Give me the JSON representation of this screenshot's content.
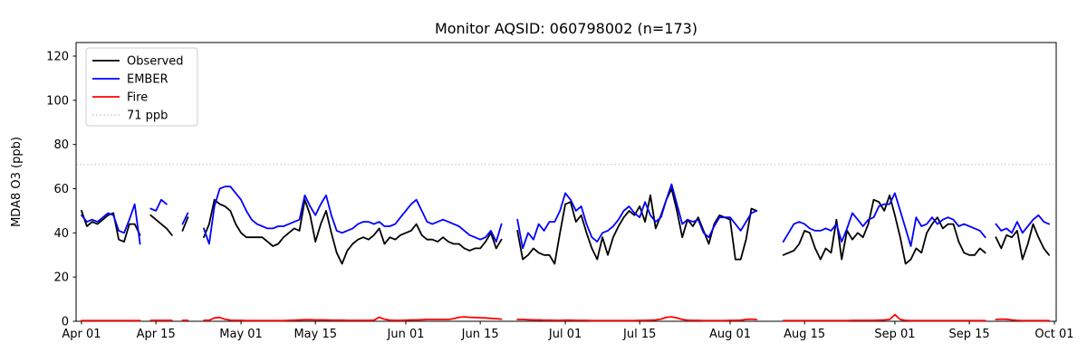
{
  "chart_data": {
    "type": "line",
    "title": "Monitor AQSID: 060798002 (n=173)",
    "ylabel": "MDA8 O3 (ppb)",
    "yticks": [
      0,
      20,
      40,
      60,
      80,
      100,
      120
    ],
    "ylim": [
      0,
      126
    ],
    "grid": false,
    "x_frequency": "daily",
    "x_start_label": "Apr 01",
    "x_end_label": "Oct 01",
    "x_tick_labels": [
      "Apr 01",
      "Apr 15",
      "May 01",
      "May 15",
      "Jun 01",
      "Jun 15",
      "Jul 01",
      "Jul 15",
      "Aug 01",
      "Aug 15",
      "Sep 01",
      "Sep 15",
      "Oct 01"
    ],
    "x_tick_days": [
      0,
      14,
      30,
      44,
      61,
      75,
      91,
      105,
      122,
      136,
      153,
      167,
      183
    ],
    "threshold_line": {
      "label": "71 ppb",
      "value": 71,
      "color": "#cfcfcf",
      "dash": "dotted"
    },
    "legend": {
      "position": "upper left",
      "entries": [
        "Observed",
        "EMBER",
        "Fire",
        "71 ppb"
      ]
    },
    "series": [
      {
        "name": "Observed",
        "color": "#000000",
        "values": [
          50,
          43,
          45,
          44,
          46,
          48,
          49,
          37,
          36,
          44,
          44,
          39,
          null,
          48,
          46,
          44,
          42,
          39,
          null,
          41,
          47,
          null,
          null,
          38,
          44,
          55,
          53,
          52,
          50,
          44,
          40,
          38,
          38,
          38,
          38,
          36,
          34,
          35,
          38,
          40,
          42,
          41,
          55,
          48,
          36,
          44,
          50,
          40,
          31,
          26,
          32,
          35,
          37,
          38,
          37,
          39,
          42,
          35,
          38,
          37,
          39,
          40,
          41,
          44,
          39,
          37,
          37,
          36,
          38,
          36,
          35,
          35,
          33,
          32,
          33,
          33,
          36,
          40,
          33,
          37,
          null,
          null,
          41,
          28,
          30,
          33,
          31,
          30,
          30,
          26,
          40,
          53,
          54,
          45,
          48,
          40,
          33,
          28,
          38,
          30,
          38,
          43,
          47,
          50,
          48,
          52,
          45,
          57,
          42,
          48,
          55,
          60,
          50,
          38,
          46,
          43,
          47,
          41,
          35,
          44,
          48,
          47,
          46,
          28,
          28,
          37,
          51,
          50,
          null,
          null,
          null,
          null,
          30,
          31,
          32,
          35,
          41,
          40,
          33,
          28,
          33,
          31,
          46,
          28,
          41,
          37,
          40,
          38,
          44,
          55,
          54,
          50,
          57,
          48,
          38,
          26,
          28,
          33,
          31,
          40,
          44,
          47,
          42,
          44,
          44,
          36,
          31,
          30,
          30,
          33,
          31,
          null,
          38,
          33,
          39,
          38,
          41,
          28,
          35,
          44,
          38,
          33,
          30
        ]
      },
      {
        "name": "EMBER",
        "color": "#0000ff",
        "values": [
          48,
          45,
          46,
          45,
          47,
          49,
          48,
          41,
          40,
          46,
          53,
          35,
          null,
          51,
          50,
          55,
          53,
          null,
          null,
          44,
          49,
          null,
          null,
          42,
          35,
          52,
          60,
          61,
          61,
          58,
          55,
          50,
          46,
          44,
          43,
          42,
          42,
          43,
          43,
          44,
          45,
          46,
          57,
          52,
          48,
          53,
          57,
          48,
          41,
          40,
          41,
          42,
          44,
          45,
          45,
          44,
          45,
          43,
          43,
          44,
          47,
          50,
          53,
          55,
          50,
          45,
          44,
          45,
          46,
          45,
          44,
          43,
          41,
          39,
          38,
          37,
          38,
          41,
          36,
          44,
          null,
          null,
          46,
          33,
          40,
          37,
          44,
          41,
          45,
          45,
          50,
          58,
          55,
          50,
          52,
          44,
          38,
          36,
          40,
          41,
          43,
          46,
          50,
          52,
          49,
          47,
          54,
          48,
          45,
          47,
          55,
          62,
          53,
          44,
          46,
          45,
          46,
          40,
          38,
          43,
          47,
          47,
          47,
          44,
          41,
          45,
          49,
          50,
          null,
          null,
          null,
          null,
          36,
          40,
          44,
          45,
          44,
          42,
          41,
          41,
          42,
          41,
          44,
          36,
          42,
          49,
          46,
          43,
          46,
          47,
          52,
          53,
          53,
          58,
          50,
          42,
          34,
          47,
          43,
          44,
          47,
          44,
          46,
          47,
          46,
          43,
          44,
          43,
          42,
          41,
          38,
          null,
          44,
          41,
          42,
          40,
          45,
          40,
          43,
          46,
          48,
          45,
          44
        ]
      },
      {
        "name": "Fire",
        "color": "#ff0000",
        "values": [
          0.3,
          0.3,
          0.3,
          0.3,
          0.3,
          0.3,
          0.3,
          0.3,
          0.3,
          0.3,
          0.3,
          0.3,
          null,
          0.4,
          0.4,
          0.4,
          0.4,
          0.4,
          null,
          0.4,
          0.4,
          null,
          null,
          0.4,
          0.5,
          1.5,
          1.7,
          0.9,
          0.5,
          0.4,
          0.4,
          0.3,
          0.3,
          0.3,
          0.3,
          0.3,
          0.3,
          0.3,
          0.3,
          0.4,
          0.5,
          0.6,
          0.7,
          0.7,
          0.6,
          0.6,
          0.6,
          0.5,
          0.5,
          0.5,
          0.4,
          0.4,
          0.4,
          0.4,
          0.4,
          0.5,
          1.8,
          0.9,
          0.5,
          0.4,
          0.4,
          0.5,
          0.6,
          0.6,
          0.7,
          0.8,
          0.8,
          0.8,
          0.8,
          0.8,
          1.2,
          1.8,
          2.0,
          1.8,
          1.7,
          1.6,
          1.5,
          1.3,
          1.2,
          1.0,
          null,
          null,
          0.8,
          0.8,
          0.7,
          0.6,
          0.6,
          0.5,
          0.5,
          0.4,
          0.4,
          0.5,
          0.5,
          0.4,
          0.4,
          0.4,
          0.3,
          0.3,
          0.3,
          0.3,
          0.3,
          0.3,
          0.3,
          0.3,
          0.3,
          0.4,
          0.4,
          0.5,
          0.6,
          1.0,
          1.8,
          2.0,
          1.5,
          0.8,
          0.5,
          0.4,
          0.4,
          0.3,
          0.3,
          0.3,
          0.3,
          0.3,
          0.4,
          0.4,
          0.5,
          0.8,
          1.0,
          0.8,
          null,
          null,
          null,
          null,
          0.3,
          0.3,
          0.3,
          0.3,
          0.3,
          0.3,
          0.3,
          0.3,
          0.3,
          0.3,
          0.3,
          0.3,
          0.3,
          0.4,
          0.4,
          0.4,
          0.4,
          0.4,
          0.5,
          0.6,
          0.8,
          3.0,
          0.8,
          0.4,
          0.3,
          0.3,
          0.3,
          0.3,
          0.3,
          0.3,
          0.3,
          0.3,
          0.3,
          0.3,
          0.3,
          0.3,
          0.3,
          0.3,
          0.3,
          null,
          0.8,
          1.0,
          0.9,
          0.6,
          0.4,
          0.3,
          0.3,
          0.3,
          0.3,
          0.3,
          0.3
        ]
      }
    ]
  }
}
